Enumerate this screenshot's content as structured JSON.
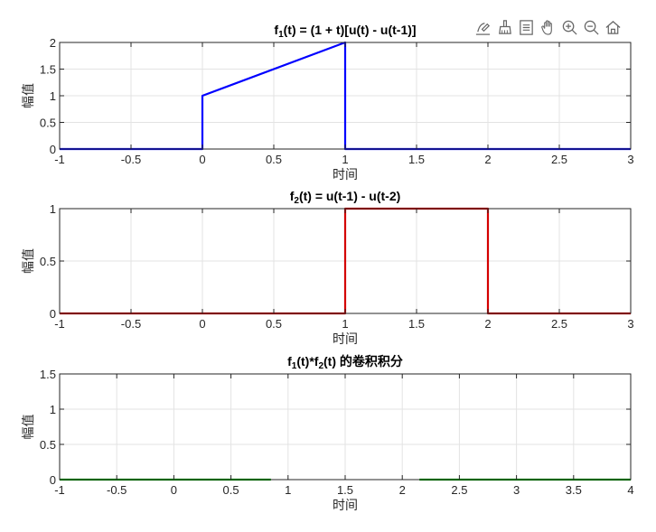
{
  "toolbar": {
    "icons": [
      "data-tips-icon",
      "brush-icon",
      "data-cursor-icon",
      "pan-hand-icon",
      "zoom-in-icon",
      "zoom-out-icon",
      "home-icon"
    ]
  },
  "chart_data": [
    {
      "type": "line",
      "title": {
        "base": "f",
        "sub": "1",
        "rest": "(t)  =  (1  +  t)[u(t)  -  u(t-1)]"
      },
      "xlabel": "时间",
      "ylabel": "幅值",
      "xlim": [
        -1,
        3
      ],
      "ylim": [
        0,
        2
      ],
      "xticks": [
        "-1",
        "-0.5",
        "0",
        "0.5",
        "1",
        "1.5",
        "2",
        "2.5",
        "3"
      ],
      "yticks": [
        "0",
        "0.5",
        "1",
        "1.5",
        "2"
      ],
      "grid": true,
      "color": "#0000ff",
      "x": [
        -1,
        0,
        0,
        1,
        1,
        3
      ],
      "y": [
        0,
        0,
        1,
        2,
        0,
        0
      ]
    },
    {
      "type": "line",
      "title": {
        "base": "f",
        "sub": "2",
        "rest": "(t)  =  u(t-1)  -  u(t-2)"
      },
      "xlabel": "时间",
      "ylabel": "幅值",
      "xlim": [
        -1,
        3
      ],
      "ylim": [
        0,
        1
      ],
      "xticks": [
        "-1",
        "-0.5",
        "0",
        "0.5",
        "1",
        "1.5",
        "2",
        "2.5",
        "3"
      ],
      "yticks": [
        "0",
        "0.5",
        "1"
      ],
      "grid": true,
      "color": "#d40000",
      "x": [
        -1,
        1,
        1,
        2,
        2,
        3
      ],
      "y": [
        0,
        0,
        1,
        1,
        0,
        0
      ]
    },
    {
      "type": "line",
      "title": {
        "base": "f",
        "sub": "1",
        "mid": "(t)*f",
        "sub2": "2",
        "rest": "(t)  的卷积积分"
      },
      "xlabel": "时间",
      "ylabel": "幅值",
      "xlim": [
        -1,
        4
      ],
      "ylim": [
        0,
        1.5
      ],
      "xticks": [
        "-1",
        "-0.5",
        "0",
        "0.5",
        "1",
        "1.5",
        "2",
        "2.5",
        "3",
        "3.5",
        "4"
      ],
      "yticks": [
        "0",
        "0.5",
        "1",
        "1.5"
      ],
      "grid": true,
      "color": "#00a000",
      "segments": [
        {
          "x": [
            -1,
            0.85
          ],
          "y": [
            0,
            0
          ]
        },
        {
          "x": [
            2.15,
            4
          ],
          "y": [
            0,
            0
          ]
        }
      ]
    }
  ]
}
